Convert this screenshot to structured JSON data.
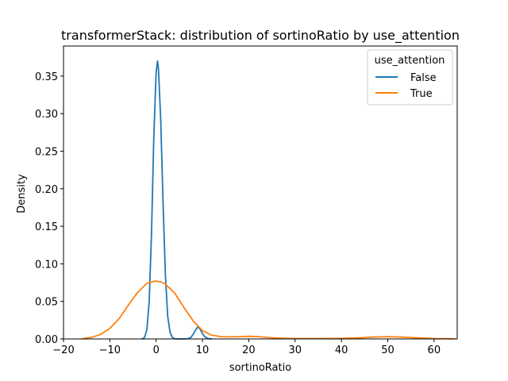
{
  "chart_data": {
    "type": "line",
    "title": "transformerStack: distribution of sortinoRatio by use_attention",
    "xlabel": "sortinoRatio",
    "ylabel": "Density",
    "xlim": [
      -20,
      65
    ],
    "ylim": [
      0,
      0.39
    ],
    "xticks": [
      -20,
      -10,
      0,
      10,
      20,
      30,
      40,
      50,
      60
    ],
    "xtick_labels": [
      "−20",
      "−10",
      "0",
      "10",
      "20",
      "30",
      "40",
      "50",
      "60"
    ],
    "yticks": [
      0.0,
      0.05,
      0.1,
      0.15,
      0.2,
      0.25,
      0.3,
      0.35
    ],
    "ytick_labels": [
      "0.00",
      "0.05",
      "0.10",
      "0.15",
      "0.20",
      "0.25",
      "0.30",
      "0.35"
    ],
    "grid": false,
    "legend": {
      "title": "use_attention",
      "placement": "top-right"
    },
    "series": [
      {
        "name": "False",
        "color": "#1f77b4",
        "x": [
          -3,
          -2.5,
          -2,
          -1.5,
          -1,
          -0.5,
          0,
          0.3,
          0.5,
          1,
          1.5,
          2,
          2.5,
          3,
          3.5,
          4,
          5,
          6,
          7,
          7.5,
          8,
          8.5,
          9,
          9.5,
          10,
          10.5,
          11,
          11.5,
          12
        ],
        "y": [
          0.0,
          0.002,
          0.012,
          0.05,
          0.14,
          0.27,
          0.355,
          0.37,
          0.36,
          0.29,
          0.18,
          0.085,
          0.03,
          0.009,
          0.002,
          0.0003,
          0.0,
          0.0,
          0.0005,
          0.002,
          0.006,
          0.012,
          0.016,
          0.013,
          0.007,
          0.003,
          0.001,
          0.0003,
          0.0
        ]
      },
      {
        "name": "True",
        "color": "#ff7f0e",
        "x": [
          -16,
          -14,
          -12,
          -10,
          -8,
          -6,
          -4,
          -2,
          -1,
          0,
          1,
          2,
          4,
          6,
          8,
          10,
          12,
          14,
          16,
          18,
          20,
          22,
          24,
          26,
          30,
          35,
          40,
          44,
          47,
          50,
          53,
          56,
          60,
          64.5
        ],
        "y": [
          0.0003,
          0.002,
          0.006,
          0.014,
          0.027,
          0.045,
          0.062,
          0.074,
          0.076,
          0.077,
          0.076,
          0.073,
          0.061,
          0.042,
          0.024,
          0.011,
          0.005,
          0.003,
          0.0028,
          0.003,
          0.0035,
          0.003,
          0.002,
          0.0012,
          0.0005,
          0.0005,
          0.0008,
          0.0015,
          0.0025,
          0.003,
          0.0025,
          0.0015,
          0.0005,
          0.0001
        ]
      }
    ]
  }
}
